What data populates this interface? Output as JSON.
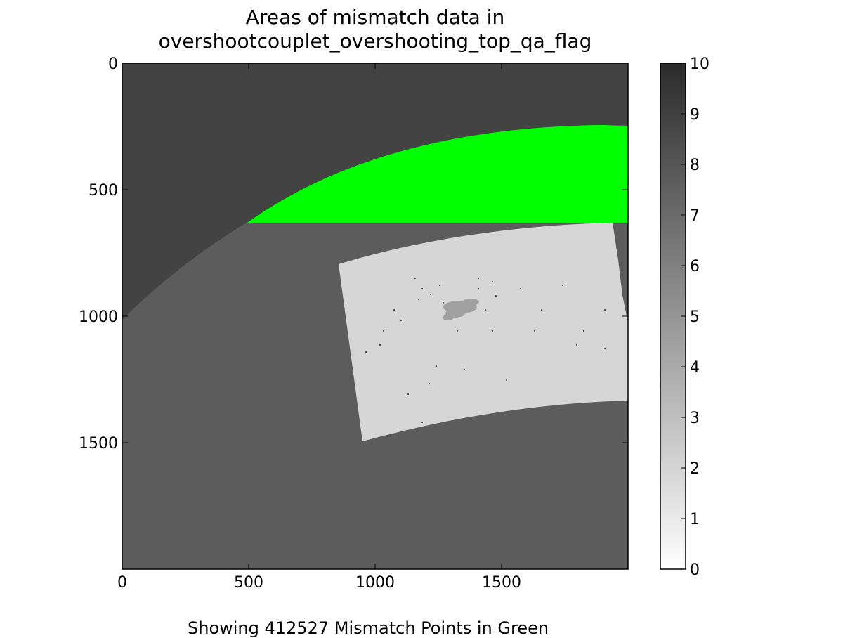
{
  "chart_data": {
    "type": "heatmap",
    "title_lines": [
      "Areas of mismatch data in",
      "overshootcouplet_overshooting_top_qa_flag"
    ],
    "xlabel": "Showing 412527 Mismatch Points in Green",
    "ylabel": "",
    "xlim": [
      0,
      2000
    ],
    "ylim": [
      2000,
      0
    ],
    "x_ticks": [
      0,
      500,
      1000,
      1500
    ],
    "y_ticks": [
      0,
      500,
      1000,
      1500
    ],
    "colorbar": {
      "colormap": "gray_r",
      "range": [
        0,
        10
      ],
      "ticks": [
        0,
        1,
        2,
        3,
        4,
        5,
        6,
        7,
        8,
        9,
        10
      ]
    },
    "regions": [
      {
        "name": "background-outside-disk",
        "value": 9.7,
        "color": "#434343"
      },
      {
        "name": "background-disk",
        "value": 8.5,
        "color": "#5c5c5c"
      },
      {
        "name": "data-swath",
        "value": 2.3,
        "color": "#d6d6d6"
      },
      {
        "name": "mismatch",
        "color": "#00ff00",
        "count": 412527
      }
    ],
    "mismatch_color": "#00ff00"
  }
}
